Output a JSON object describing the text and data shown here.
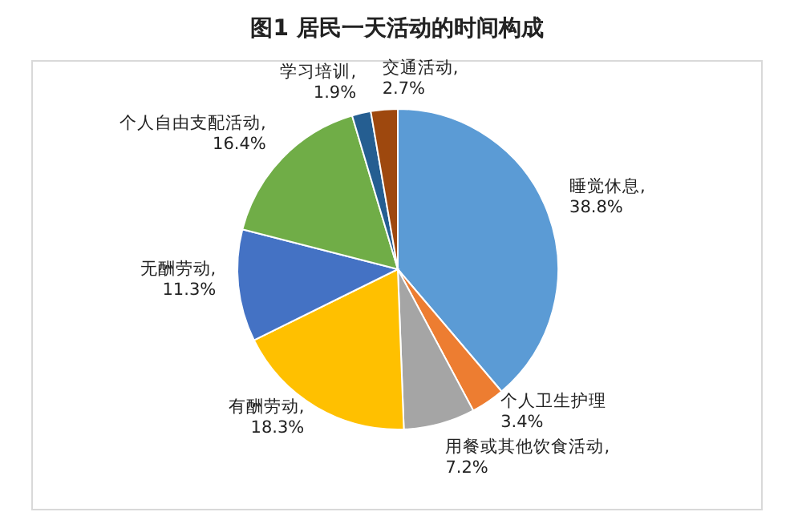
{
  "chart_data": {
    "type": "pie",
    "title": "图1  居民一天活动的时间构成",
    "categories": [
      "睡觉休息",
      "个人卫生护理",
      "用餐或其他饮食活动",
      "有酬劳动",
      "无酬劳动",
      "个人自由支配活动",
      "学习培训",
      "交通活动"
    ],
    "values": [
      38.8,
      3.4,
      7.2,
      18.3,
      11.3,
      16.4,
      1.9,
      2.7
    ],
    "colors": [
      "#5b9bd5",
      "#ed7d31",
      "#a5a5a5",
      "#ffc000",
      "#4472c4",
      "#70ad47",
      "#255e91",
      "#9e480e"
    ],
    "value_labels": [
      ", 38.8%",
      " 3.4%",
      ", 7.2%",
      ", 18.3%",
      ", 11.3%",
      ", 16.4%",
      ", 1.9%",
      ", 2.7%"
    ]
  }
}
